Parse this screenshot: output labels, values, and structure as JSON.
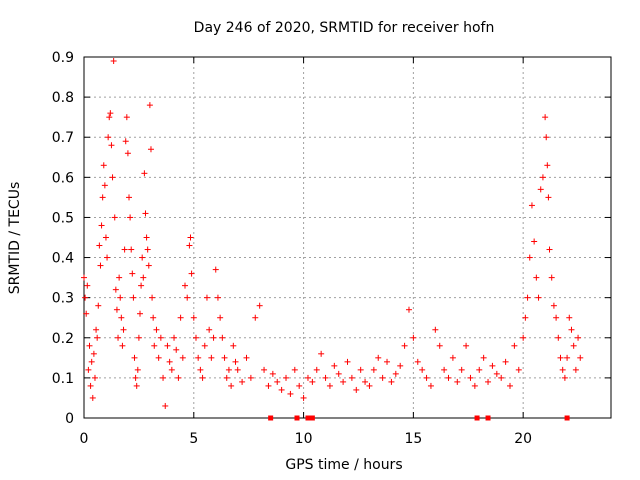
{
  "chart_data": {
    "type": "scatter",
    "title": "Day 246 of 2020, SRMTID for receiver hofn",
    "xlabel": "GPS time / hours",
    "ylabel": "SRMTID / TECUs",
    "xlim": [
      0,
      24
    ],
    "ylim": [
      0,
      0.9
    ],
    "xticks": [
      0,
      5,
      10,
      15,
      20
    ],
    "xtick_labels": [
      "0",
      "5",
      "10",
      "15",
      "20"
    ],
    "yticks": [
      0,
      0.1,
      0.2,
      0.3,
      0.4,
      0.5,
      0.6,
      0.7,
      0.8,
      0.9
    ],
    "ytick_labels": [
      "0",
      "0.1",
      "0.2",
      "0.3",
      "0.4",
      "0.5",
      "0.6",
      "0.7",
      "0.8",
      "0.9"
    ],
    "grid": true,
    "marker": "plus",
    "series_color": "#ff0000",
    "series": [
      {
        "name": "SRMTID",
        "points": [
          [
            0.0,
            0.35
          ],
          [
            0.05,
            0.3
          ],
          [
            0.1,
            0.26
          ],
          [
            0.15,
            0.33
          ],
          [
            0.2,
            0.12
          ],
          [
            0.25,
            0.18
          ],
          [
            0.3,
            0.08
          ],
          [
            0.35,
            0.14
          ],
          [
            0.4,
            0.05
          ],
          [
            0.45,
            0.16
          ],
          [
            0.5,
            0.1
          ],
          [
            0.55,
            0.22
          ],
          [
            0.6,
            0.2
          ],
          [
            0.65,
            0.28
          ],
          [
            0.7,
            0.43
          ],
          [
            0.75,
            0.38
          ],
          [
            0.8,
            0.48
          ],
          [
            0.85,
            0.55
          ],
          [
            0.9,
            0.63
          ],
          [
            0.95,
            0.58
          ],
          [
            1.0,
            0.45
          ],
          [
            1.05,
            0.4
          ],
          [
            1.1,
            0.7
          ],
          [
            1.15,
            0.75
          ],
          [
            1.2,
            0.76
          ],
          [
            1.25,
            0.68
          ],
          [
            1.3,
            0.6
          ],
          [
            1.35,
            0.89
          ],
          [
            1.4,
            0.5
          ],
          [
            1.45,
            0.32
          ],
          [
            1.5,
            0.27
          ],
          [
            1.55,
            0.2
          ],
          [
            1.6,
            0.35
          ],
          [
            1.65,
            0.3
          ],
          [
            1.7,
            0.25
          ],
          [
            1.75,
            0.18
          ],
          [
            1.8,
            0.22
          ],
          [
            1.85,
            0.42
          ],
          [
            1.9,
            0.69
          ],
          [
            1.95,
            0.75
          ],
          [
            2.0,
            0.66
          ],
          [
            2.05,
            0.55
          ],
          [
            2.1,
            0.5
          ],
          [
            2.15,
            0.42
          ],
          [
            2.2,
            0.36
          ],
          [
            2.25,
            0.3
          ],
          [
            2.3,
            0.15
          ],
          [
            2.35,
            0.1
          ],
          [
            2.4,
            0.08
          ],
          [
            2.45,
            0.12
          ],
          [
            2.5,
            0.2
          ],
          [
            2.55,
            0.26
          ],
          [
            2.6,
            0.33
          ],
          [
            2.65,
            0.4
          ],
          [
            2.7,
            0.35
          ],
          [
            2.75,
            0.61
          ],
          [
            2.8,
            0.51
          ],
          [
            2.85,
            0.45
          ],
          [
            2.9,
            0.42
          ],
          [
            2.95,
            0.38
          ],
          [
            3.0,
            0.78
          ],
          [
            3.05,
            0.67
          ],
          [
            3.1,
            0.3
          ],
          [
            3.15,
            0.25
          ],
          [
            3.2,
            0.18
          ],
          [
            3.3,
            0.22
          ],
          [
            3.4,
            0.15
          ],
          [
            3.5,
            0.2
          ],
          [
            3.6,
            0.1
          ],
          [
            3.7,
            0.03
          ],
          [
            3.8,
            0.18
          ],
          [
            3.9,
            0.14
          ],
          [
            4.0,
            0.12
          ],
          [
            4.1,
            0.2
          ],
          [
            4.2,
            0.17
          ],
          [
            4.3,
            0.1
          ],
          [
            4.4,
            0.25
          ],
          [
            4.5,
            0.15
          ],
          [
            4.6,
            0.33
          ],
          [
            4.7,
            0.3
          ],
          [
            4.8,
            0.43
          ],
          [
            4.85,
            0.45
          ],
          [
            4.9,
            0.36
          ],
          [
            5.0,
            0.25
          ],
          [
            5.1,
            0.2
          ],
          [
            5.2,
            0.15
          ],
          [
            5.3,
            0.12
          ],
          [
            5.4,
            0.1
          ],
          [
            5.5,
            0.18
          ],
          [
            5.6,
            0.3
          ],
          [
            5.7,
            0.22
          ],
          [
            5.8,
            0.15
          ],
          [
            5.9,
            0.2
          ],
          [
            6.0,
            0.37
          ],
          [
            6.1,
            0.3
          ],
          [
            6.2,
            0.25
          ],
          [
            6.3,
            0.2
          ],
          [
            6.4,
            0.15
          ],
          [
            6.5,
            0.1
          ],
          [
            6.6,
            0.12
          ],
          [
            6.7,
            0.08
          ],
          [
            6.8,
            0.18
          ],
          [
            6.9,
            0.14
          ],
          [
            7.0,
            0.12
          ],
          [
            7.2,
            0.09
          ],
          [
            7.4,
            0.15
          ],
          [
            7.6,
            0.1
          ],
          [
            7.8,
            0.25
          ],
          [
            8.0,
            0.28
          ],
          [
            8.2,
            0.12
          ],
          [
            8.4,
            0.08
          ],
          [
            8.6,
            0.11
          ],
          [
            8.8,
            0.09
          ],
          [
            9.0,
            0.07
          ],
          [
            9.2,
            0.1
          ],
          [
            9.4,
            0.06
          ],
          [
            9.6,
            0.12
          ],
          [
            9.8,
            0.08
          ],
          [
            10.0,
            0.05
          ],
          [
            10.2,
            0.1
          ],
          [
            10.4,
            0.09
          ],
          [
            10.6,
            0.12
          ],
          [
            10.8,
            0.16
          ],
          [
            11.0,
            0.1
          ],
          [
            11.2,
            0.08
          ],
          [
            11.4,
            0.13
          ],
          [
            11.6,
            0.11
          ],
          [
            11.8,
            0.09
          ],
          [
            12.0,
            0.14
          ],
          [
            12.2,
            0.1
          ],
          [
            12.4,
            0.07
          ],
          [
            12.6,
            0.12
          ],
          [
            12.8,
            0.09
          ],
          [
            13.0,
            0.08
          ],
          [
            13.2,
            0.12
          ],
          [
            13.4,
            0.15
          ],
          [
            13.6,
            0.1
          ],
          [
            13.8,
            0.14
          ],
          [
            14.0,
            0.09
          ],
          [
            14.2,
            0.11
          ],
          [
            14.4,
            0.13
          ],
          [
            14.6,
            0.18
          ],
          [
            14.8,
            0.27
          ],
          [
            15.0,
            0.2
          ],
          [
            15.2,
            0.14
          ],
          [
            15.4,
            0.12
          ],
          [
            15.6,
            0.1
          ],
          [
            15.8,
            0.08
          ],
          [
            16.0,
            0.22
          ],
          [
            16.2,
            0.18
          ],
          [
            16.4,
            0.12
          ],
          [
            16.6,
            0.1
          ],
          [
            16.8,
            0.15
          ],
          [
            17.0,
            0.09
          ],
          [
            17.2,
            0.12
          ],
          [
            17.4,
            0.18
          ],
          [
            17.6,
            0.1
          ],
          [
            17.8,
            0.08
          ],
          [
            18.0,
            0.12
          ],
          [
            18.2,
            0.15
          ],
          [
            18.4,
            0.09
          ],
          [
            18.6,
            0.13
          ],
          [
            18.8,
            0.11
          ],
          [
            19.0,
            0.1
          ],
          [
            19.2,
            0.14
          ],
          [
            19.4,
            0.08
          ],
          [
            19.6,
            0.18
          ],
          [
            19.8,
            0.12
          ],
          [
            20.0,
            0.2
          ],
          [
            20.1,
            0.25
          ],
          [
            20.2,
            0.3
          ],
          [
            20.3,
            0.4
          ],
          [
            20.4,
            0.53
          ],
          [
            20.5,
            0.44
          ],
          [
            20.6,
            0.35
          ],
          [
            20.7,
            0.3
          ],
          [
            20.8,
            0.57
          ],
          [
            20.9,
            0.6
          ],
          [
            21.0,
            0.75
          ],
          [
            21.05,
            0.7
          ],
          [
            21.1,
            0.63
          ],
          [
            21.15,
            0.55
          ],
          [
            21.2,
            0.42
          ],
          [
            21.3,
            0.35
          ],
          [
            21.4,
            0.28
          ],
          [
            21.5,
            0.25
          ],
          [
            21.6,
            0.2
          ],
          [
            21.7,
            0.15
          ],
          [
            21.8,
            0.12
          ],
          [
            21.9,
            0.1
          ],
          [
            22.0,
            0.15
          ],
          [
            22.1,
            0.25
          ],
          [
            22.2,
            0.22
          ],
          [
            22.3,
            0.18
          ],
          [
            22.4,
            0.12
          ],
          [
            22.5,
            0.2
          ],
          [
            22.6,
            0.15
          ]
        ]
      }
    ],
    "zero_markers_x": [
      8.5,
      9.7,
      10.2,
      10.4,
      17.9,
      18.4,
      22.0
    ]
  }
}
